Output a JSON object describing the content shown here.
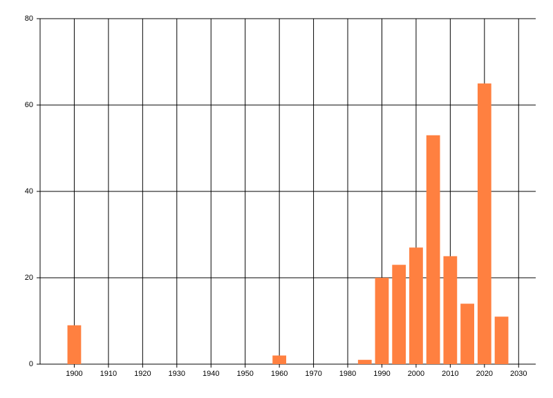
{
  "chart_data": {
    "type": "bar",
    "x": [
      1900,
      1960,
      1985,
      1990,
      1995,
      2000,
      2005,
      2010,
      2015,
      2020,
      2025
    ],
    "values": [
      9,
      2,
      1,
      20,
      23,
      27,
      53,
      25,
      14,
      65,
      11
    ],
    "color": "#ff8040",
    "xlim": [
      1890,
      2035
    ],
    "xticks": [
      1900,
      1910,
      1920,
      1930,
      1940,
      1950,
      1960,
      1970,
      1980,
      1990,
      2000,
      2010,
      2020,
      2030
    ],
    "ylim": [
      0,
      80
    ],
    "yticks": [
      0,
      20,
      40,
      60,
      80
    ],
    "grid": true
  }
}
